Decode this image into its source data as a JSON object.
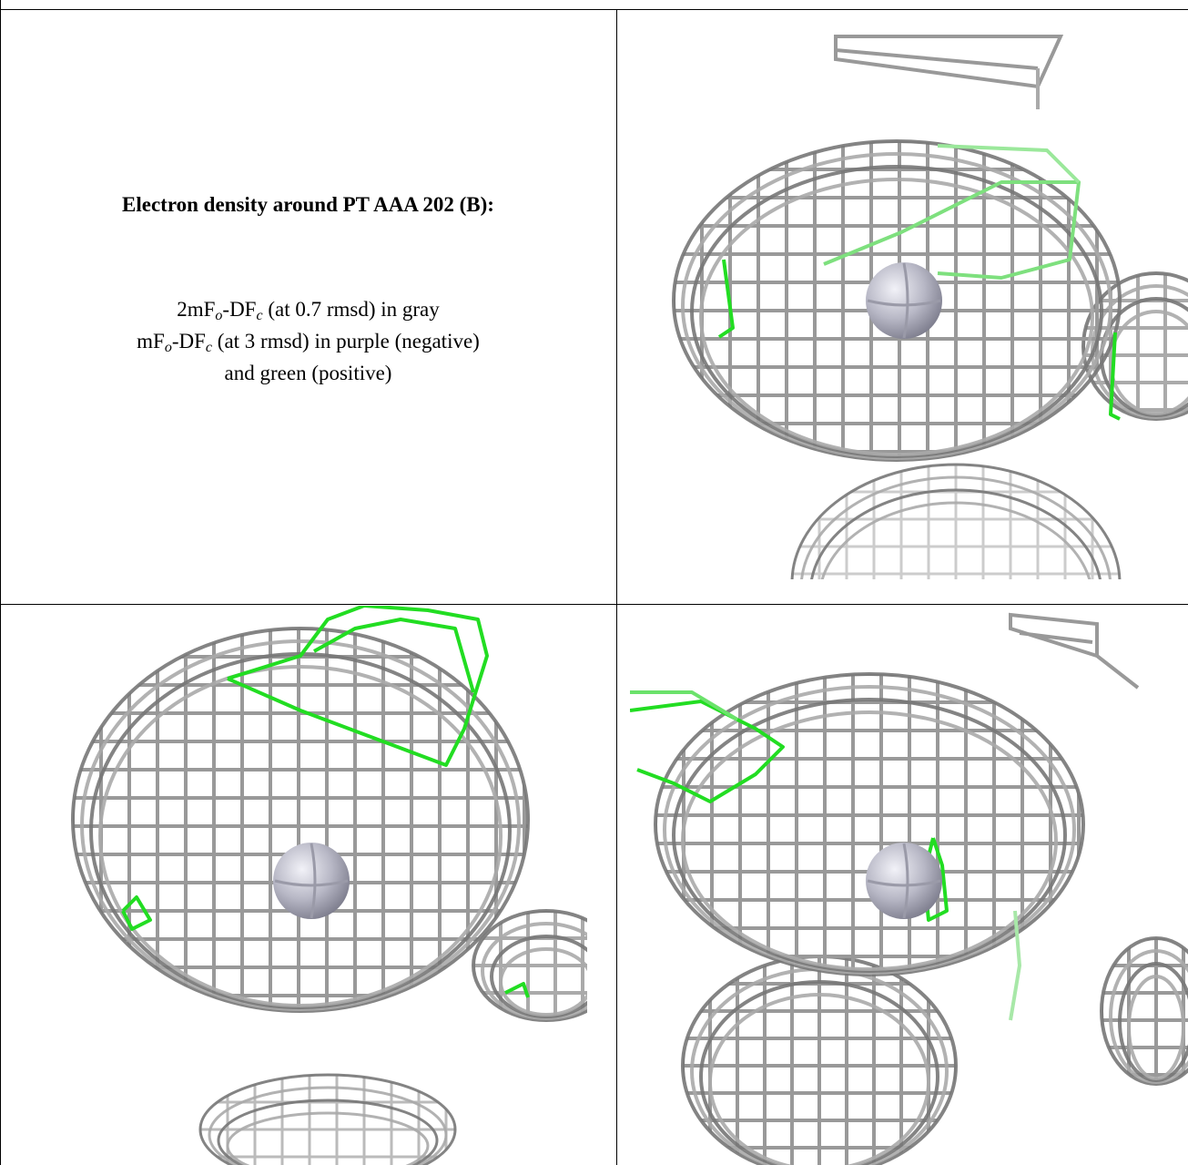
{
  "title": "Electron density around PT AAA 202 (B):",
  "caption": [
    [
      "2mF",
      "o",
      "-DF",
      "c",
      " (at 0.7 rmsd) in gray"
    ],
    [
      "mF",
      "o",
      "-DF",
      "c",
      " (at 3 rmsd) in purple (negative)"
    ],
    [
      "and green (positive)"
    ]
  ]
}
